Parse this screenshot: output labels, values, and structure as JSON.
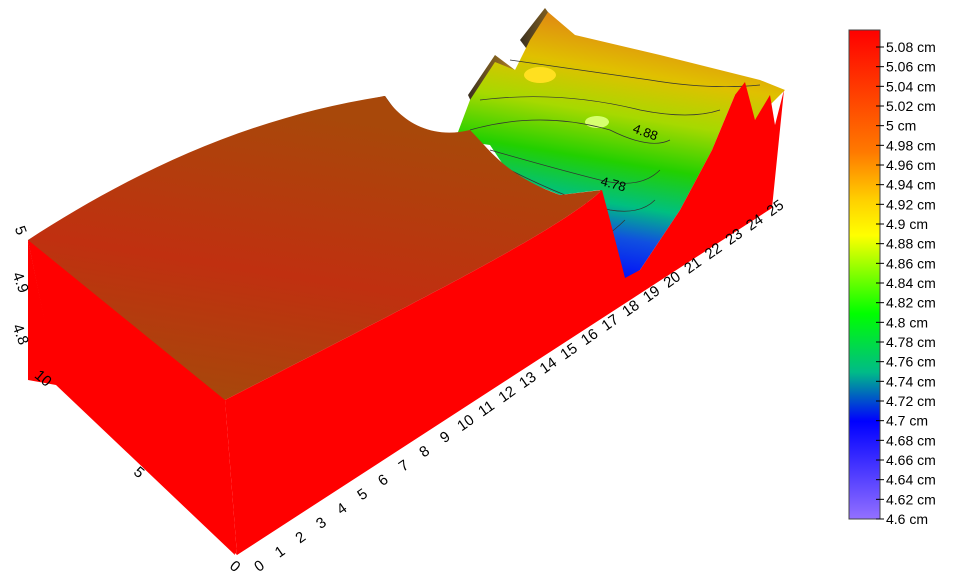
{
  "chart_data": {
    "type": "surface",
    "unit": "cm",
    "x_ticks": [
      "0",
      "1",
      "2",
      "3",
      "4",
      "5",
      "6",
      "7",
      "8",
      "9",
      "10",
      "11",
      "12",
      "13",
      "14",
      "15",
      "16",
      "17",
      "18",
      "19",
      "20",
      "21",
      "22",
      "23",
      "24",
      "25"
    ],
    "y_ticks": [
      "0",
      "5",
      "10"
    ],
    "z_ticks": [
      "4.8",
      "4.9",
      "5"
    ],
    "zlim": [
      4.6,
      5.08
    ],
    "colorbar": {
      "labels": [
        "5.08 cm",
        "5.06 cm",
        "5.04 cm",
        "5.02 cm",
        "5 cm",
        "4.98 cm",
        "4.96 cm",
        "4.94 cm",
        "4.92 cm",
        "4.9 cm",
        "4.88 cm",
        "4.86 cm",
        "4.84 cm",
        "4.82 cm",
        "4.8 cm",
        "4.78 cm",
        "4.76 cm",
        "4.74 cm",
        "4.72 cm",
        "4.7 cm",
        "4.68 cm",
        "4.66 cm",
        "4.64 cm",
        "4.62 cm",
        "4.6 cm"
      ],
      "colors": [
        "#ff0000",
        "#ffd200",
        "#00ff00",
        "#0000ff",
        "#9370ff"
      ]
    },
    "contour_labels": [
      "4.88",
      "4.78"
    ],
    "surface_profile": {
      "front_edge_x": [
        0,
        2,
        4,
        6,
        8,
        10,
        12,
        13,
        14,
        15,
        16,
        18,
        20,
        21,
        22,
        23,
        24,
        25
      ],
      "front_edge_z": [
        5.0,
        5.03,
        5.04,
        5.05,
        5.06,
        5.05,
        5.02,
        5.0,
        4.98,
        4.7,
        4.8,
        4.88,
        4.95,
        5.0,
        5.07,
        4.97,
        5.06,
        5.02
      ]
    }
  }
}
